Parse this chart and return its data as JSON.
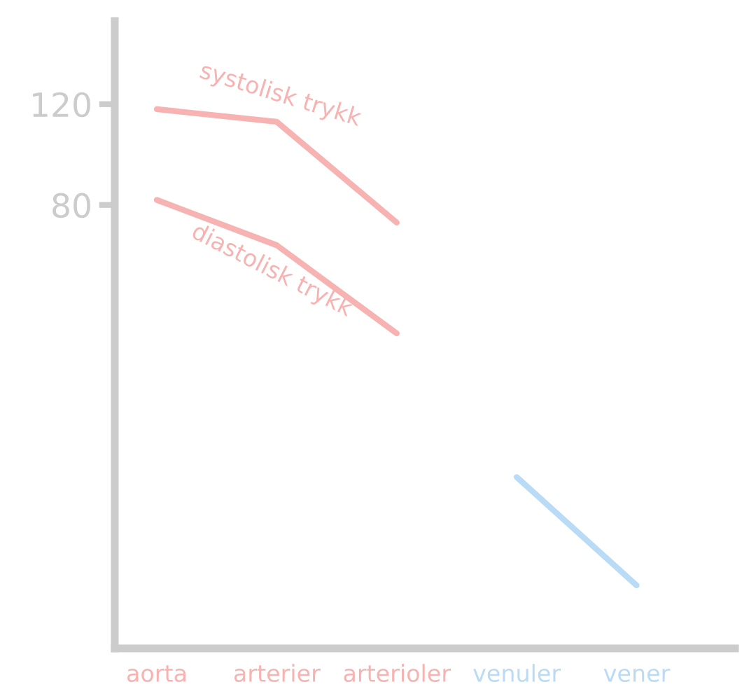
{
  "chart_data": {
    "type": "line",
    "categories": [
      "aorta",
      "arterier",
      "arterioler",
      "venuler",
      "vener"
    ],
    "series": [
      {
        "color": "#f7b3b1",
        "values": [
          118,
          113,
          73,
          null,
          null
        ]
      },
      {
        "color": "#f7b3b1",
        "values": [
          82,
          64,
          29,
          null,
          null
        ]
      },
      {
        "color": "#b9dbf5",
        "values": [
          null,
          null,
          null,
          -28,
          -71
        ]
      }
    ],
    "ylim": [
      -96,
      153
    ],
    "yticks": [
      80,
      120
    ],
    "annotations": [
      "systolisk trykk",
      "diastolisk trykk"
    ],
    "grid": false,
    "legend": false,
    "marker": "none",
    "line_style": "solid"
  }
}
